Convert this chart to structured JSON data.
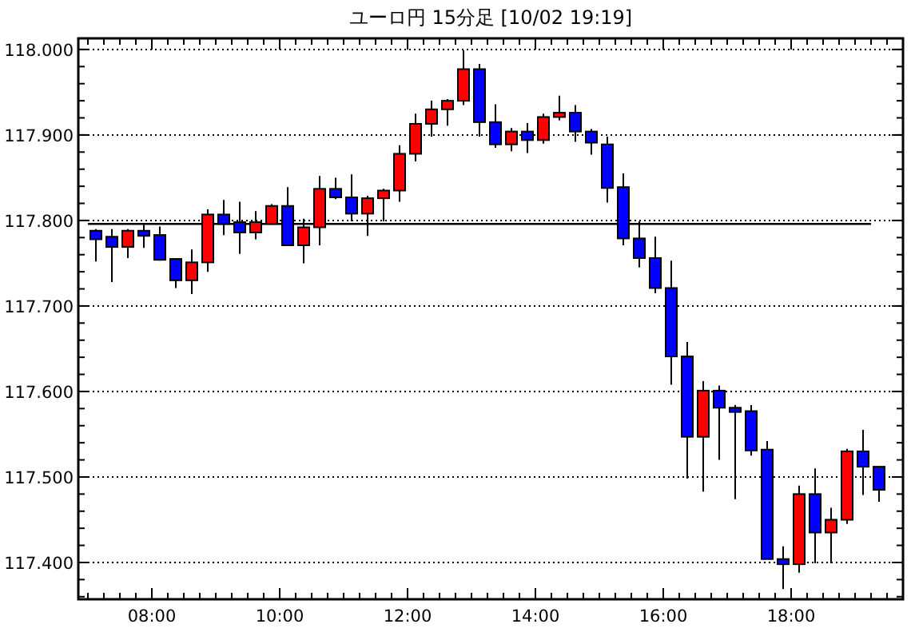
{
  "chart_data": {
    "type": "candlestick",
    "title": "ユーロ円 15分足 [10/02 19:19]",
    "x": [
      7.125,
      7.375,
      7.625,
      7.875,
      8.125,
      8.375,
      8.625,
      8.875,
      9.125,
      9.375,
      9.625,
      9.875,
      10.125,
      10.375,
      10.625,
      10.875,
      11.125,
      11.375,
      11.625,
      11.875,
      12.125,
      12.375,
      12.625,
      12.875,
      13.125,
      13.375,
      13.625,
      13.875,
      14.125,
      14.375,
      14.625,
      14.875,
      15.125,
      15.375,
      15.625,
      15.875,
      16.125,
      16.375,
      16.625,
      16.875,
      17.125,
      17.375,
      17.625,
      17.875,
      18.125,
      18.375,
      18.625,
      18.875,
      19.125,
      19.375
    ],
    "ohlc": [
      [
        117.788,
        117.79,
        117.752,
        117.778
      ],
      [
        117.781,
        117.79,
        117.728,
        117.769
      ],
      [
        117.769,
        117.79,
        117.756,
        117.788
      ],
      [
        117.788,
        117.795,
        117.768,
        117.782
      ],
      [
        117.783,
        117.793,
        117.753,
        117.754
      ],
      [
        117.755,
        117.756,
        117.721,
        117.73
      ],
      [
        117.73,
        117.766,
        117.714,
        117.751
      ],
      [
        117.751,
        117.813,
        117.74,
        117.807
      ],
      [
        117.807,
        117.824,
        117.783,
        117.796
      ],
      [
        117.798,
        117.822,
        117.761,
        117.786
      ],
      [
        117.786,
        117.811,
        117.778,
        117.798
      ],
      [
        117.796,
        117.819,
        117.796,
        117.817
      ],
      [
        117.817,
        117.839,
        117.771,
        117.771
      ],
      [
        117.771,
        117.802,
        117.75,
        117.792
      ],
      [
        117.792,
        117.852,
        117.771,
        117.837
      ],
      [
        117.837,
        117.85,
        117.825,
        117.827
      ],
      [
        117.827,
        117.854,
        117.799,
        117.808
      ],
      [
        117.808,
        117.829,
        117.782,
        117.826
      ],
      [
        117.826,
        117.837,
        117.799,
        117.835
      ],
      [
        117.835,
        117.888,
        117.822,
        117.878
      ],
      [
        117.878,
        117.925,
        117.869,
        117.913
      ],
      [
        117.913,
        117.94,
        117.898,
        117.93
      ],
      [
        117.93,
        117.942,
        117.911,
        117.94
      ],
      [
        117.94,
        117.999,
        117.935,
        117.977
      ],
      [
        117.977,
        117.983,
        117.898,
        117.915
      ],
      [
        117.915,
        117.936,
        117.885,
        117.889
      ],
      [
        117.889,
        117.908,
        117.881,
        117.904
      ],
      [
        117.904,
        117.914,
        117.879,
        117.894
      ],
      [
        117.894,
        117.925,
        117.89,
        117.921
      ],
      [
        117.921,
        117.946,
        117.917,
        117.926
      ],
      [
        117.926,
        117.935,
        117.892,
        117.904
      ],
      [
        117.904,
        117.907,
        117.877,
        117.891
      ],
      [
        117.889,
        117.898,
        117.821,
        117.838
      ],
      [
        117.839,
        117.855,
        117.771,
        117.779
      ],
      [
        117.779,
        117.799,
        117.745,
        117.756
      ],
      [
        117.756,
        117.781,
        117.715,
        117.721
      ],
      [
        117.721,
        117.753,
        117.608,
        117.641
      ],
      [
        117.641,
        117.658,
        117.498,
        117.547
      ],
      [
        117.547,
        117.612,
        117.483,
        117.601
      ],
      [
        117.601,
        117.607,
        117.52,
        117.581
      ],
      [
        117.581,
        117.584,
        117.474,
        117.576
      ],
      [
        117.577,
        117.584,
        117.525,
        117.531
      ],
      [
        117.532,
        117.542,
        117.404,
        117.404
      ],
      [
        117.404,
        117.419,
        117.369,
        117.398
      ],
      [
        117.398,
        117.49,
        117.388,
        117.48
      ],
      [
        117.48,
        117.51,
        117.399,
        117.435
      ],
      [
        117.435,
        117.464,
        117.399,
        117.45
      ],
      [
        117.45,
        117.533,
        117.445,
        117.53
      ],
      [
        117.53,
        117.555,
        117.479,
        117.512
      ],
      [
        117.512,
        117.512,
        117.471,
        117.485
      ]
    ],
    "colors": [
      "#0000ff",
      "#0000ff",
      "#ff0000",
      "#0000ff",
      "#0000ff",
      "#0000ff",
      "#ff0000",
      "#ff0000",
      "#0000ff",
      "#0000ff",
      "#ff0000",
      "#ff0000",
      "#0000ff",
      "#ff0000",
      "#ff0000",
      "#0000ff",
      "#0000ff",
      "#ff0000",
      "#ff0000",
      "#ff0000",
      "#ff0000",
      "#ff0000",
      "#ff0000",
      "#ff0000",
      "#0000ff",
      "#0000ff",
      "#ff0000",
      "#0000ff",
      "#ff0000",
      "#ff0000",
      "#0000ff",
      "#0000ff",
      "#0000ff",
      "#0000ff",
      "#0000ff",
      "#0000ff",
      "#0000ff",
      "#0000ff",
      "#ff0000",
      "#0000ff",
      "#0000ff",
      "#0000ff",
      "#0000ff",
      "#0000ff",
      "#ff0000",
      "#0000ff",
      "#ff0000",
      "#ff0000",
      "#0000ff",
      "#0000ff"
    ],
    "xlim": [
      6.85,
      19.75
    ],
    "xticks": [
      {
        "value": 8,
        "label": "08:00"
      },
      {
        "value": 10,
        "label": "10:00"
      },
      {
        "value": 12,
        "label": "12:00"
      },
      {
        "value": 14,
        "label": "14:00"
      },
      {
        "value": 16,
        "label": "16:00"
      },
      {
        "value": 18,
        "label": "18:00"
      }
    ],
    "ylim": [
      117.357,
      118.013
    ],
    "yticks": [
      {
        "value": 117.4,
        "label": "117.400"
      },
      {
        "value": 117.5,
        "label": "117.500"
      },
      {
        "value": 117.6,
        "label": "117.600"
      },
      {
        "value": 117.7,
        "label": "117.700"
      },
      {
        "value": 117.8,
        "label": "117.800"
      },
      {
        "value": 117.9,
        "label": "117.900"
      },
      {
        "value": 118.0,
        "label": "118.000"
      }
    ],
    "grid": "y",
    "ref_lines": [
      {
        "axis": "y",
        "value": 117.796,
        "color": "#000000",
        "line_style": "solid"
      }
    ]
  }
}
